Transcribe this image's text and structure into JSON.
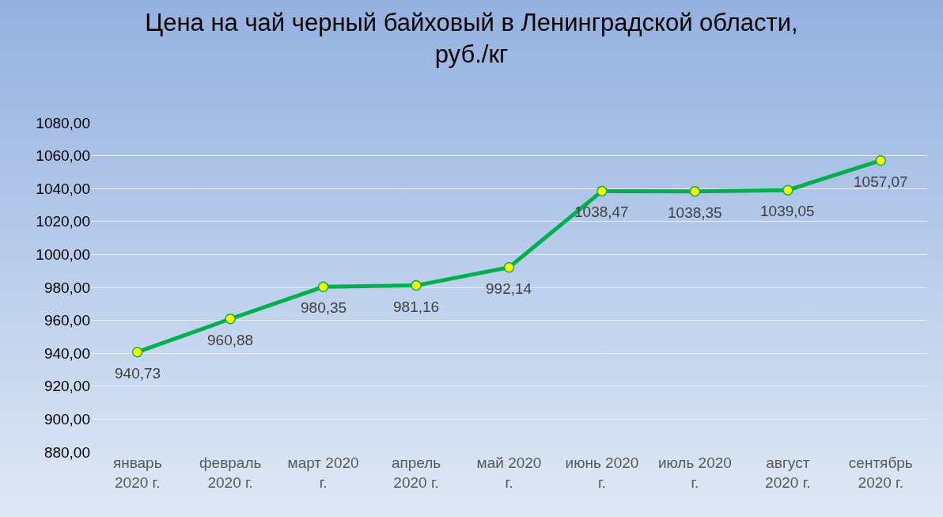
{
  "chart_data": {
    "type": "line",
    "title": "Цена на чай черный байховый в Ленинградской области, руб./кг",
    "categories": [
      "январь 2020 г.",
      "февраль 2020 г.",
      "март 2020 г.",
      "апрель 2020 г.",
      "май 2020 г.",
      "июнь 2020 г.",
      "июль 2020 г.",
      "август 2020 г.",
      "сентябрь 2020 г."
    ],
    "series": [
      {
        "color": "#00b050",
        "values": [
          940.73,
          960.88,
          980.35,
          981.16,
          992.14,
          1038.47,
          1038.35,
          1039.05,
          1057.07
        ],
        "value_labels": [
          "940,73",
          "960,88",
          "980,35",
          "981,16",
          "992,14",
          "1038,47",
          "1038,35",
          "1039,05",
          "1057,07"
        ]
      }
    ],
    "ylim": [
      880,
      1080
    ],
    "yticks": [
      {
        "value": 880,
        "label": "880,00"
      },
      {
        "value": 900,
        "label": "900,00"
      },
      {
        "value": 920,
        "label": "920,00"
      },
      {
        "value": 940,
        "label": "940,00"
      },
      {
        "value": 960,
        "label": "960,00"
      },
      {
        "value": 980,
        "label": "980,00"
      },
      {
        "value": 1000,
        "label": "1000,00"
      },
      {
        "value": 1020,
        "label": "1020,00"
      },
      {
        "value": 1040,
        "label": "1040,00"
      },
      {
        "value": 1060,
        "label": "1060,00"
      },
      {
        "value": 1080,
        "label": "1080,00"
      }
    ],
    "grid": "y",
    "marker": "circle",
    "line_style": "solid"
  }
}
